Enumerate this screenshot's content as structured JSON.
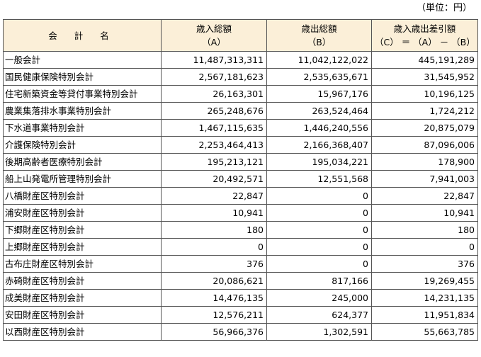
{
  "unit_label": "（単位：円）",
  "header": {
    "name": "会 計 名",
    "col_a_line1": "歳入総額",
    "col_a_line2": "（A）",
    "col_b_line1": "歳出総額",
    "col_b_line2": "（B）",
    "col_c_line1": "歳入歳出差引額",
    "col_c_line2": "（C） ＝ （A） － （B）"
  },
  "rows": [
    {
      "name": "一般会計",
      "a": "11,487,313,311",
      "b": "11,042,122,022",
      "c": "445,191,289"
    },
    {
      "name": "国民健康保険特別会計",
      "a": "2,567,181,623",
      "b": "2,535,635,671",
      "c": "31,545,952"
    },
    {
      "name": "住宅新築資金等貸付事業特別会計",
      "a": "26,163,301",
      "b": "15,967,176",
      "c": "10,196,125"
    },
    {
      "name": "農業集落排水事業特別会計",
      "a": "265,248,676",
      "b": "263,524,464",
      "c": "1,724,212"
    },
    {
      "name": "下水道事業特別会計",
      "a": "1,467,115,635",
      "b": "1,446,240,556",
      "c": "20,875,079"
    },
    {
      "name": "介護保険特別会計",
      "a": "2,253,464,413",
      "b": "2,166,368,407",
      "c": "87,096,006"
    },
    {
      "name": "後期高齢者医療特別会計",
      "a": "195,213,121",
      "b": "195,034,221",
      "c": "178,900"
    },
    {
      "name": "船上山発電所管理特別会計",
      "a": "20,492,571",
      "b": "12,551,568",
      "c": "7,941,003"
    },
    {
      "name": "八橋財産区特別会計",
      "a": "22,847",
      "b": "0",
      "c": "22,847"
    },
    {
      "name": "浦安財産区特別会計",
      "a": "10,941",
      "b": "0",
      "c": "10,941"
    },
    {
      "name": "下郷財産区特別会計",
      "a": "180",
      "b": "0",
      "c": "180"
    },
    {
      "name": "上郷財産区特別会計",
      "a": "0",
      "b": "0",
      "c": "0"
    },
    {
      "name": "古布庄財産区特別会計",
      "a": "376",
      "b": "0",
      "c": "376"
    },
    {
      "name": "赤碕財産区特別会計",
      "a": "20,086,621",
      "b": "817,166",
      "c": "19,269,455"
    },
    {
      "name": "成美財産区特別会計",
      "a": "14,476,135",
      "b": "245,000",
      "c": "14,231,135"
    },
    {
      "name": "安田財産区特別会計",
      "a": "12,576,211",
      "b": "624,377",
      "c": "11,951,834"
    },
    {
      "name": "以西財産区特別会計",
      "a": "56,966,376",
      "b": "1,302,591",
      "c": "55,663,785"
    }
  ]
}
